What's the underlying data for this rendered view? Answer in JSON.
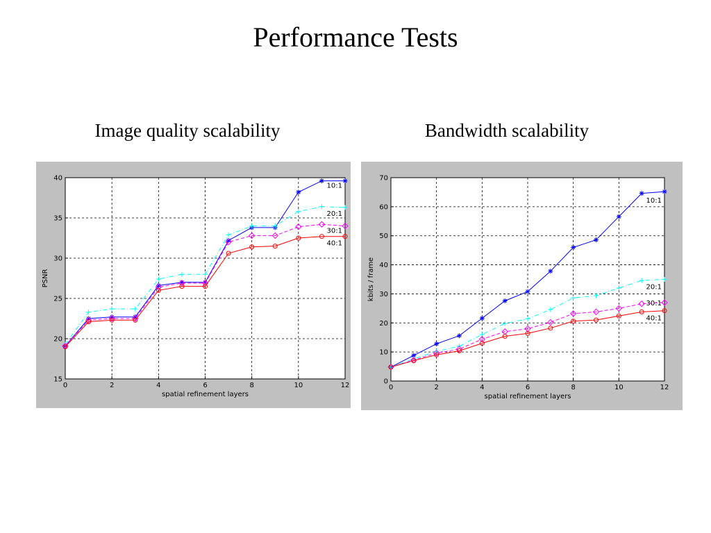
{
  "slide": {
    "title": "Performance Tests",
    "left_subtitle": "Image quality scalability",
    "right_subtitle": "Bandwidth scalability"
  },
  "colors": {
    "frame_bg": "#c0c0c0",
    "plot_bg": "#ffffff",
    "grid": "#000000",
    "series_10": "#0000ff",
    "series_20": "#00ffff",
    "series_30": "#ff00ff",
    "series_40": "#ff0000"
  },
  "chart_data": [
    {
      "type": "line",
      "title": "",
      "xlabel": "spatial refinement layers",
      "ylabel": "PSNR",
      "xlim": [
        0,
        12
      ],
      "ylim": [
        15,
        40
      ],
      "xticks": [
        0,
        2,
        4,
        6,
        8,
        10,
        12
      ],
      "yticks": [
        15,
        20,
        25,
        30,
        35,
        40
      ],
      "grid": true,
      "x": [
        0,
        1,
        2,
        3,
        4,
        5,
        6,
        7,
        8,
        9,
        10,
        11,
        12
      ],
      "series": [
        {
          "name": "10:1",
          "marker": "star",
          "color": "#0000ff",
          "dash": "solid",
          "values": [
            19.1,
            22.5,
            22.7,
            22.7,
            26.6,
            27.0,
            27.0,
            32.2,
            33.8,
            33.8,
            38.2,
            39.6,
            39.6
          ]
        },
        {
          "name": "20:1",
          "marker": "plus",
          "color": "#00ffff",
          "dash": "dashdot",
          "values": [
            19.3,
            23.3,
            23.7,
            23.7,
            27.4,
            28.0,
            28.0,
            32.9,
            34.0,
            34.0,
            35.8,
            36.4,
            36.3
          ]
        },
        {
          "name": "30:1",
          "marker": "diamond",
          "color": "#ff00ff",
          "dash": "dashed",
          "values": [
            19.1,
            22.3,
            22.5,
            22.5,
            26.4,
            26.9,
            26.9,
            32.0,
            32.8,
            32.8,
            33.9,
            34.2,
            34.0
          ]
        },
        {
          "name": "40:1",
          "marker": "circle",
          "color": "#ff0000",
          "dash": "solid",
          "values": [
            19.0,
            22.1,
            22.3,
            22.3,
            26.0,
            26.5,
            26.5,
            30.6,
            31.4,
            31.5,
            32.5,
            32.7,
            32.7
          ]
        }
      ]
    },
    {
      "type": "line",
      "title": "",
      "xlabel": "spatial refinement layers",
      "ylabel": "kbits / frame",
      "xlim": [
        0,
        12
      ],
      "ylim": [
        0,
        70
      ],
      "xticks": [
        0,
        2,
        4,
        6,
        8,
        10,
        12
      ],
      "yticks": [
        0,
        10,
        20,
        30,
        40,
        50,
        60,
        70
      ],
      "grid": true,
      "x": [
        0,
        1,
        2,
        3,
        4,
        5,
        6,
        7,
        8,
        9,
        10,
        11,
        12
      ],
      "series": [
        {
          "name": "10:1",
          "marker": "star",
          "color": "#0000ff",
          "dash": "solid",
          "values": [
            4.8,
            8.8,
            12.8,
            15.6,
            21.6,
            27.6,
            30.8,
            37.8,
            46.0,
            48.6,
            56.6,
            64.6,
            65.2
          ]
        },
        {
          "name": "20:1",
          "marker": "plus",
          "color": "#00ffff",
          "dash": "dashdot",
          "values": [
            4.8,
            7.6,
            10.2,
            12.0,
            16.0,
            19.8,
            21.4,
            24.6,
            28.6,
            29.4,
            32.0,
            34.6,
            35.0
          ]
        },
        {
          "name": "30:1",
          "marker": "diamond",
          "color": "#ff00ff",
          "dash": "dashed",
          "values": [
            4.8,
            7.2,
            9.6,
            11.0,
            14.4,
            17.0,
            18.0,
            20.2,
            23.2,
            23.8,
            25.0,
            26.6,
            27.0
          ]
        },
        {
          "name": "40:1",
          "marker": "circle",
          "color": "#ff0000",
          "dash": "solid",
          "values": [
            4.8,
            7.0,
            9.0,
            10.4,
            13.0,
            15.4,
            16.4,
            18.2,
            20.6,
            21.0,
            22.4,
            23.8,
            24.2
          ]
        }
      ]
    }
  ]
}
